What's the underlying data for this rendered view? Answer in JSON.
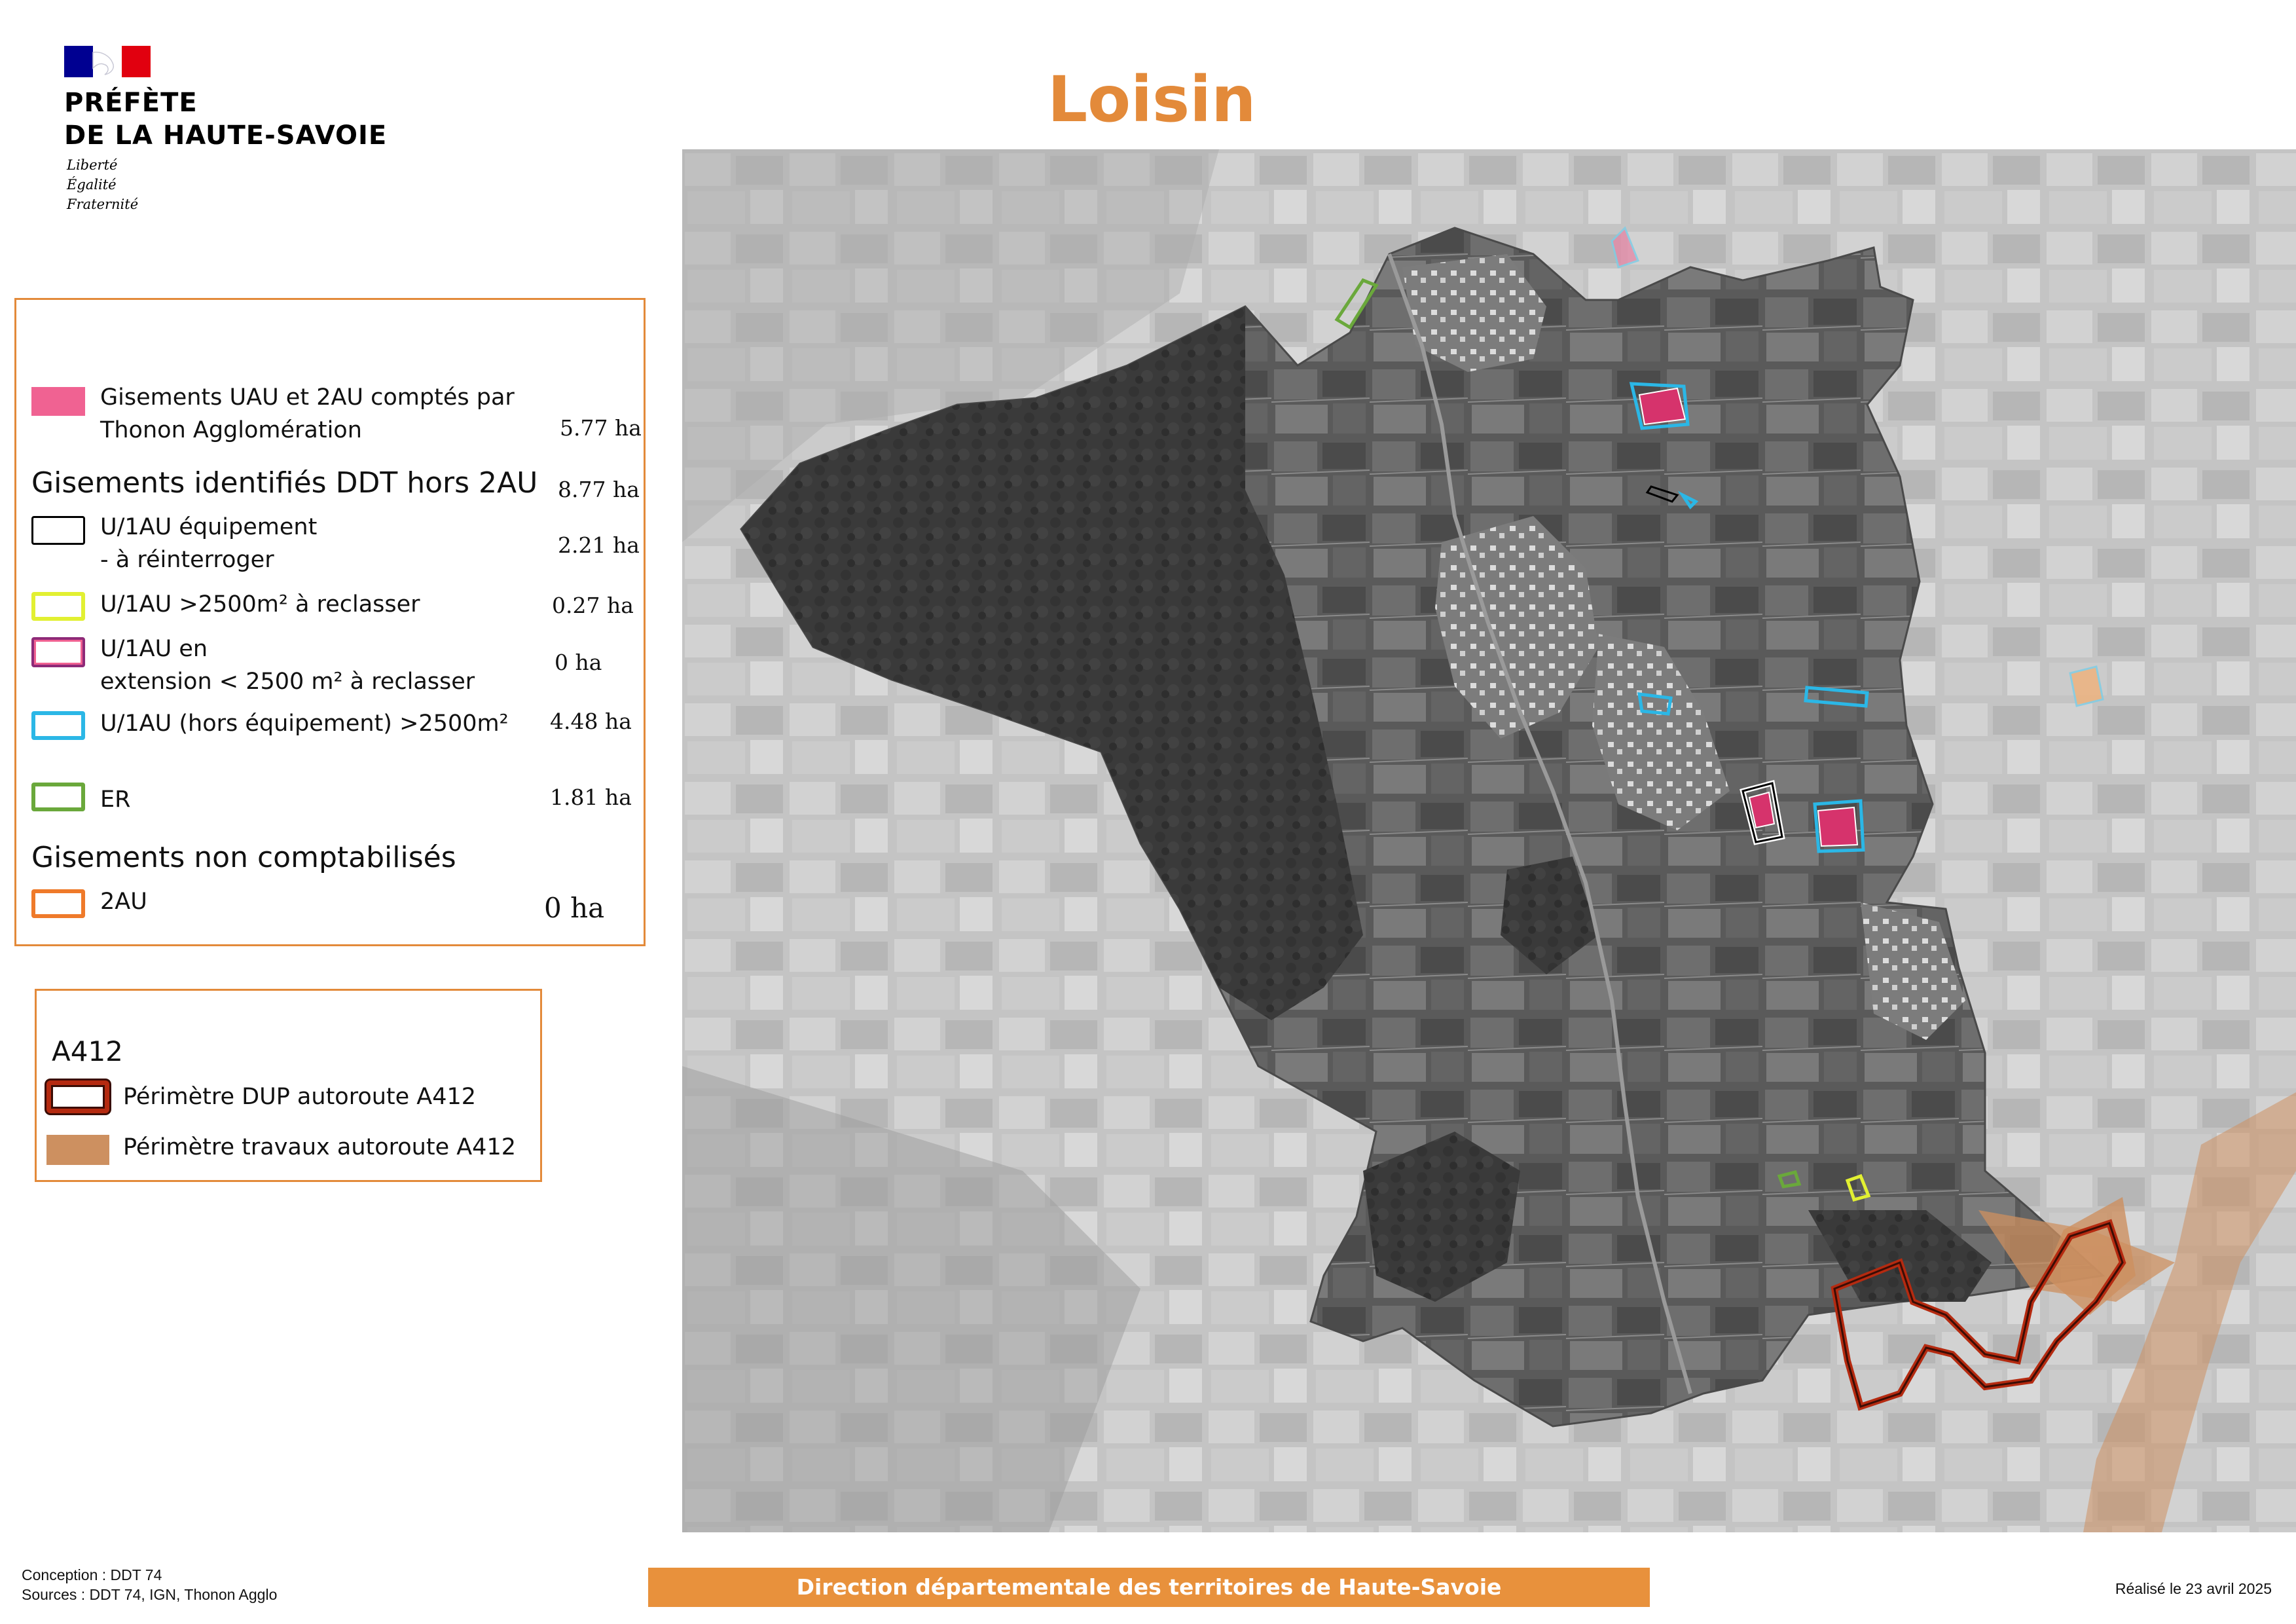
{
  "authority": {
    "line1": "PRÉFÈTE",
    "line2": "DE LA HAUTE-SAVOIE",
    "motto": [
      "Liberté",
      "Égalité",
      "Fraternité"
    ],
    "flag_colors": [
      "#000091",
      "#ffffff",
      "#e1000f"
    ]
  },
  "title": "Loisin",
  "title_color": "#e38a3a",
  "legend": {
    "items": [
      {
        "label": "Gisements UAU et 2AU comptés par\nThonon Agglomération",
        "value": "5.77 ha",
        "swatch": "pink-fill",
        "color": "#f06292"
      },
      {
        "heading": "Gisements identifiés DDT hors 2AU",
        "value": "8.77 ha"
      },
      {
        "label": "U/1AU équipement\n- à réinterroger",
        "value": "2.21 ha",
        "swatch": "black-outline",
        "color": "#000000"
      },
      {
        "label": "U/1AU >2500m²  à reclasser",
        "value": "0.27 ha",
        "swatch": "yellow-outline",
        "color": "#e2f032"
      },
      {
        "label": "U/1AU en\nextension  < 2500 m² à reclasser",
        "value": "0 ha",
        "swatch": "purple-red-outline",
        "color": "#8e2a78"
      },
      {
        "label": "U/1AU (hors équipement) >2500m²",
        "value": "4.48 ha",
        "swatch": "cyan-outline",
        "color": "#2bb7e6"
      },
      {
        "label": "ER",
        "value": "1.81 ha",
        "swatch": "green-outline",
        "color": "#6aa83b"
      },
      {
        "heading": "Gisements non comptabilisés"
      },
      {
        "label": "2AU",
        "value": "0 ha",
        "swatch": "orange-outline",
        "color": "#ef7a2a"
      }
    ]
  },
  "legend_a412": {
    "heading": "A412",
    "items": [
      {
        "label": "Périmètre DUP autoroute A412",
        "swatch": "dark-red-double-outline",
        "color": "#b52a10"
      },
      {
        "label": "Périmètre travaux autoroute A412",
        "swatch": "tan-fill",
        "color": "#cd9060"
      }
    ]
  },
  "footer": {
    "conception": "Conception : DDT 74",
    "sources": "Sources : DDT 74, IGN, Thonon Agglo",
    "banner": "Direction départementale des territoires de Haute-Savoie",
    "realise": "Réalisé le 23 avril 2025"
  }
}
